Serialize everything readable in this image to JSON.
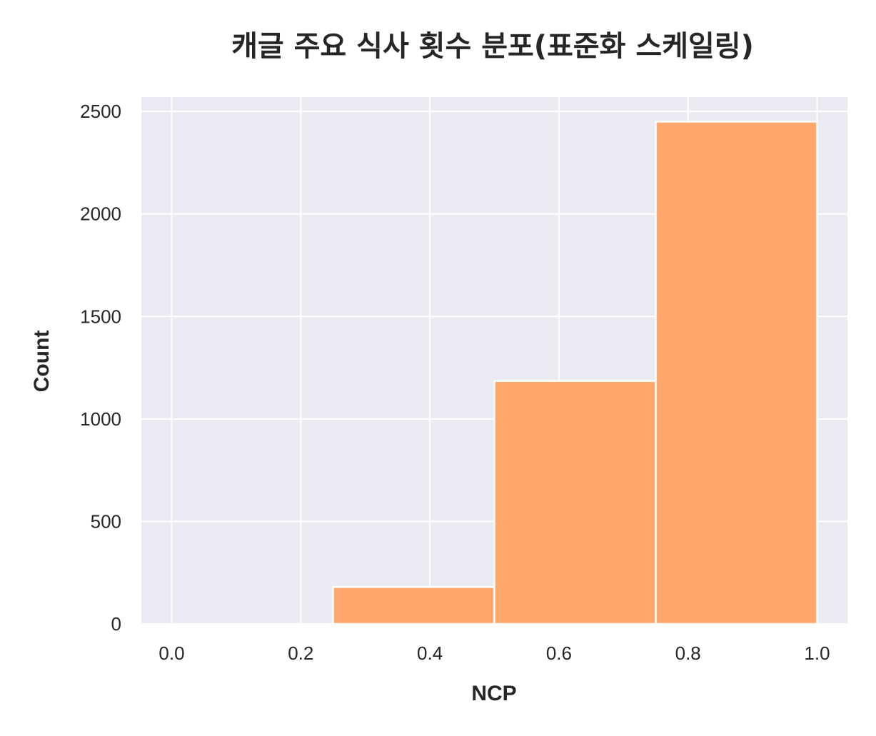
{
  "chart_data": {
    "type": "bar",
    "title": "캐글 주요 식사 횟수 분포(표준화 스케일링)",
    "xlabel": "NCP",
    "ylabel": "Count",
    "bins": [
      {
        "x0": 0.25,
        "x1": 0.5,
        "count": 180
      },
      {
        "x0": 0.5,
        "x1": 0.75,
        "count": 1185
      },
      {
        "x0": 0.75,
        "x1": 1.0,
        "count": 2450
      }
    ],
    "xlim": [
      -0.047,
      1.047
    ],
    "ylim": [
      0,
      2570
    ],
    "x_ticks": [
      0.0,
      0.2,
      0.4,
      0.6,
      0.8,
      1.0
    ],
    "x_tick_labels": [
      "0.0",
      "0.2",
      "0.4",
      "0.6",
      "0.8",
      "1.0"
    ],
    "y_ticks": [
      0,
      500,
      1000,
      1500,
      2000,
      2500
    ],
    "y_tick_labels": [
      "0",
      "500",
      "1000",
      "1500",
      "2000",
      "2500"
    ],
    "grid": true,
    "colors": {
      "bar": "#ffa76c",
      "background": "#eaeaf2",
      "grid": "#ffffff",
      "text": "#262626"
    }
  }
}
